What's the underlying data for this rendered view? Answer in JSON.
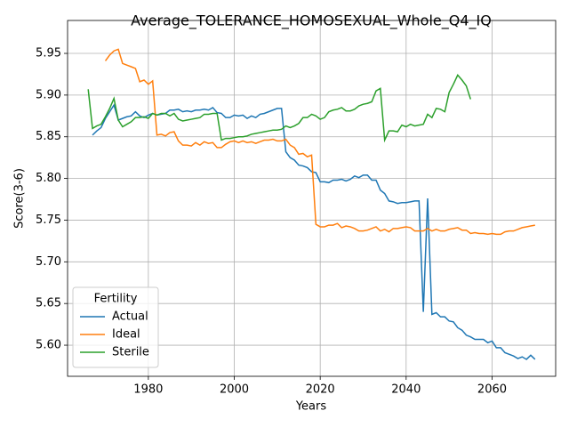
{
  "chart_data": {
    "type": "line",
    "title": "Average_TOLERANCE_HOMOSEXUAL_Whole_Q4_IQ",
    "x_label": "Years",
    "y_label": "Score(3-6)",
    "legend_title": "Fertility",
    "legend_loc": "lower left",
    "grid": true,
    "xlim": [
      1961.2,
      2074.8
    ],
    "ylim": [
      5.5627,
      5.9895
    ],
    "xticks": [
      1980,
      2000,
      2020,
      2040,
      2060
    ],
    "yticks": [
      {
        "value": 5.6,
        "label": "5.60"
      },
      5.65,
      {
        "value": 5.7,
        "label": "5.70"
      },
      5.75,
      {
        "value": 5.8,
        "label": "5.80"
      },
      5.85,
      {
        "value": 5.9,
        "label": "5.90"
      },
      5.95
    ],
    "x": [
      1966,
      1967,
      1968,
      1969,
      1970,
      1971,
      1972,
      1973,
      1974,
      1975,
      1976,
      1977,
      1978,
      1979,
      1980,
      1981,
      1982,
      1983,
      1984,
      1985,
      1986,
      1987,
      1988,
      1989,
      1990,
      1991,
      1992,
      1993,
      1994,
      1995,
      1996,
      1997,
      1998,
      1999,
      2000,
      2001,
      2002,
      2003,
      2004,
      2005,
      2006,
      2007,
      2008,
      2009,
      2010,
      2011,
      2012,
      2013,
      2014,
      2015,
      2016,
      2017,
      2018,
      2019,
      2020,
      2021,
      2022,
      2023,
      2024,
      2025,
      2026,
      2027,
      2028,
      2029,
      2030,
      2031,
      2032,
      2033,
      2034,
      2035,
      2036,
      2037,
      2038,
      2039,
      2040,
      2041,
      2042,
      2043,
      2044,
      2045,
      2046,
      2047,
      2048,
      2049,
      2050,
      2051,
      2052,
      2053,
      2054,
      2055,
      2056,
      2057,
      2058,
      2059,
      2060,
      2061,
      2062,
      2063,
      2064,
      2065,
      2066,
      2067,
      2068,
      2069,
      2070
    ],
    "series": [
      {
        "name": "Actual",
        "color": "#1f77b4",
        "values": [
          null,
          5.852,
          5.857,
          5.861,
          5.872,
          5.88,
          5.888,
          5.87,
          5.872,
          5.874,
          5.875,
          5.88,
          5.875,
          5.873,
          5.876,
          5.878,
          5.876,
          5.877,
          5.878,
          5.882,
          5.882,
          5.883,
          5.88,
          5.881,
          5.88,
          5.882,
          5.882,
          5.883,
          5.882,
          5.885,
          5.879,
          5.878,
          5.873,
          5.873,
          5.876,
          5.875,
          5.876,
          5.872,
          5.875,
          5.873,
          5.877,
          5.878,
          5.88,
          5.882,
          5.884,
          5.884,
          5.832,
          5.825,
          5.822,
          5.816,
          5.815,
          5.813,
          5.808,
          5.807,
          5.796,
          5.796,
          5.795,
          5.798,
          5.798,
          5.799,
          5.797,
          5.799,
          5.803,
          5.801,
          5.804,
          5.804,
          5.798,
          5.798,
          5.786,
          5.782,
          5.773,
          5.772,
          5.77,
          5.771,
          5.771,
          5.772,
          5.773,
          5.773,
          5.64,
          5.776,
          5.637,
          5.639,
          5.634,
          5.634,
          5.629,
          5.628,
          5.621,
          5.618,
          5.612,
          5.61,
          5.607,
          5.607,
          5.607,
          5.603,
          5.605,
          5.597,
          5.597,
          5.591,
          5.589,
          5.587,
          5.584,
          5.586,
          5.583,
          5.588,
          5.583
        ]
      },
      {
        "name": "Ideal",
        "color": "#ff7f0e",
        "values": [
          null,
          null,
          null,
          null,
          5.941,
          5.948,
          5.953,
          5.955,
          5.938,
          5.936,
          5.934,
          5.932,
          5.916,
          5.918,
          5.913,
          5.917,
          5.852,
          5.853,
          5.851,
          5.855,
          5.856,
          5.845,
          5.84,
          5.84,
          5.839,
          5.843,
          5.84,
          5.844,
          5.842,
          5.843,
          5.837,
          5.837,
          5.841,
          5.844,
          5.845,
          5.843,
          5.845,
          5.843,
          5.844,
          5.842,
          5.844,
          5.846,
          5.846,
          5.847,
          5.845,
          5.845,
          5.847,
          5.84,
          5.837,
          5.829,
          5.83,
          5.826,
          5.828,
          5.745,
          5.742,
          5.742,
          5.744,
          5.744,
          5.746,
          5.741,
          5.743,
          5.742,
          5.74,
          5.737,
          5.737,
          5.738,
          5.74,
          5.742,
          5.737,
          5.739,
          5.736,
          5.74,
          5.74,
          5.741,
          5.742,
          5.741,
          5.737,
          5.737,
          5.737,
          5.74,
          5.737,
          5.739,
          5.737,
          5.737,
          5.739,
          5.74,
          5.741,
          5.738,
          5.738,
          5.734,
          5.735,
          5.734,
          5.734,
          5.733,
          5.734,
          5.733,
          5.733,
          5.736,
          5.737,
          5.737,
          5.739,
          5.741,
          5.742,
          5.743,
          5.744
        ]
      },
      {
        "name": "Sterile",
        "color": "#2ca02c",
        "values": [
          5.907,
          5.86,
          5.863,
          5.865,
          5.874,
          5.884,
          5.896,
          5.87,
          5.862,
          5.865,
          5.868,
          5.873,
          5.873,
          5.874,
          5.872,
          5.878,
          5.876,
          5.878,
          5.878,
          5.875,
          5.878,
          5.871,
          5.869,
          5.87,
          5.871,
          5.872,
          5.873,
          5.877,
          5.877,
          5.878,
          5.878,
          5.846,
          5.848,
          5.848,
          5.849,
          5.85,
          5.85,
          5.851,
          5.853,
          5.854,
          5.855,
          5.856,
          5.857,
          5.858,
          5.858,
          5.859,
          5.863,
          5.861,
          5.863,
          5.866,
          5.873,
          5.873,
          5.877,
          5.875,
          5.871,
          5.873,
          5.88,
          5.882,
          5.883,
          5.885,
          5.881,
          5.881,
          5.883,
          5.887,
          5.889,
          5.89,
          5.892,
          5.905,
          5.908,
          5.846,
          5.857,
          5.857,
          5.856,
          5.864,
          5.862,
          5.865,
          5.863,
          5.864,
          5.865,
          5.877,
          5.873,
          5.884,
          5.883,
          5.88,
          5.903,
          5.913,
          5.924,
          5.918,
          5.911,
          5.895,
          null,
          null,
          null,
          null,
          null,
          null,
          null,
          null,
          null,
          null,
          null,
          null,
          null,
          null,
          null
        ]
      }
    ]
  }
}
